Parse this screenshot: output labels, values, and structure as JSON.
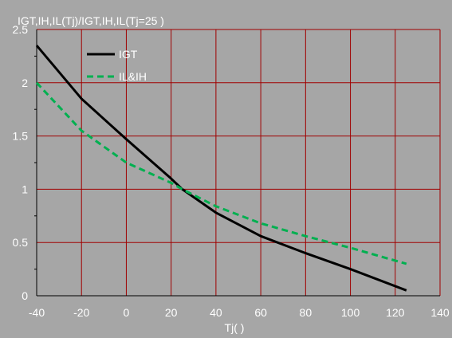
{
  "chart_data": {
    "type": "line",
    "title": "IGT,IH,IL(Tj)/IGT,IH,IL(Tj=25   )",
    "xlabel": "Tj(   )",
    "ylabel": "",
    "xlim": [
      -40,
      140
    ],
    "ylim": [
      0,
      2.5
    ],
    "x_ticks": [
      -40,
      -20,
      0,
      20,
      40,
      60,
      80,
      100,
      120,
      140
    ],
    "y_ticks": [
      0,
      0.5,
      1,
      1.5,
      2,
      2.5
    ],
    "x_tick_labels": [
      "-40",
      "-20",
      "0",
      "20",
      "40",
      "60",
      "80",
      "100",
      "120",
      "140"
    ],
    "y_tick_labels": [
      "0",
      "0.5",
      "1",
      "1.5",
      "2",
      "2.5"
    ],
    "grid": true,
    "legend_position": "top-left",
    "colors": {
      "plot_background": "#a6a6a6",
      "grid": "#a00000",
      "axis": "#000000",
      "text": "#ffffff"
    },
    "series": [
      {
        "name": "IGT",
        "color": "#000000",
        "dash": "solid",
        "x": [
          -40,
          -20,
          0,
          20,
          25,
          40,
          60,
          80,
          100,
          125
        ],
        "y": [
          2.35,
          1.85,
          1.47,
          1.1,
          1.0,
          0.78,
          0.56,
          0.4,
          0.25,
          0.05
        ]
      },
      {
        "name": "IL&IH",
        "color": "#00b050",
        "dash": "dashed",
        "x": [
          -40,
          -20,
          0,
          20,
          25,
          40,
          60,
          80,
          100,
          125
        ],
        "y": [
          2.0,
          1.55,
          1.25,
          1.06,
          1.0,
          0.84,
          0.68,
          0.56,
          0.45,
          0.3
        ]
      }
    ]
  }
}
